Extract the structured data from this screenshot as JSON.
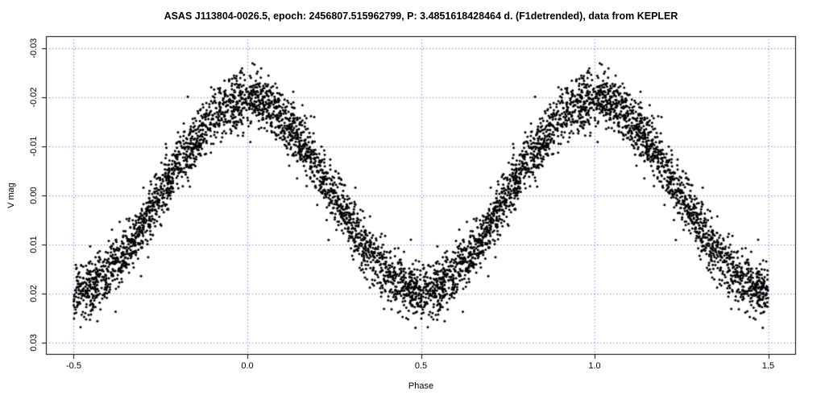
{
  "title": "ASAS J113804-0026.5, epoch: 2456807.515962799, P: 3.4851618428464 d. (F1detrended), data from KEPLER",
  "chart_data": {
    "type": "scatter",
    "title": "ASAS J113804-0026.5, epoch: 2456807.515962799, P: 3.4851618428464 d. (F1detrended), data from KEPLER",
    "xlabel": "Phase",
    "ylabel": "V mag",
    "xlim": [
      -0.5,
      1.5
    ],
    "ylim": [
      -0.03,
      0.03
    ],
    "y_axis_reversed": true,
    "axis_expansion": 0.04,
    "x_ticks": [
      -0.5,
      0.0,
      0.5,
      1.0,
      1.5
    ],
    "x_tick_labels": [
      "-0.5",
      "0.0",
      "0.5",
      "1.0",
      "1.5"
    ],
    "y_ticks": [
      -0.03,
      -0.02,
      -0.01,
      0.0,
      0.01,
      0.02,
      0.03
    ],
    "y_tick_labels": [
      "-0.03",
      "-0.02",
      "-0.01",
      "0.00",
      "0.01",
      "0.02",
      "0.03"
    ],
    "grid": true,
    "grid_color": "#5555ee",
    "grid_style": "dotted",
    "box_color": "#000000",
    "point_color": "#000000",
    "point_radius": 1.5,
    "legend": "none",
    "model": {
      "description": "Sinusoidal phased light curve; brightness maximum (most negative V mag) at phase 0.0 and 1.0, minimum at phase -0.5, 0.5, 1.5. Each observation is plotted twice (at phase and phase+1), phase folded over [-0.5, 0.5].",
      "mean_vmag": 0.0,
      "amplitude_mag": 0.0195,
      "phase_of_max_brightness": 0.0,
      "noise_sigma_mag": 0.0028,
      "n_base_points": 2600,
      "seed": 1138042656
    },
    "mean_curve": [
      {
        "phase": -0.5,
        "vmag": 0.0195
      },
      {
        "phase": -0.45,
        "vmag": 0.0185
      },
      {
        "phase": -0.4,
        "vmag": 0.0158
      },
      {
        "phase": -0.35,
        "vmag": 0.0115
      },
      {
        "phase": -0.3,
        "vmag": 0.006
      },
      {
        "phase": -0.25,
        "vmag": 0.0
      },
      {
        "phase": -0.2,
        "vmag": -0.006
      },
      {
        "phase": -0.15,
        "vmag": -0.0115
      },
      {
        "phase": -0.1,
        "vmag": -0.0158
      },
      {
        "phase": -0.05,
        "vmag": -0.0185
      },
      {
        "phase": 0.0,
        "vmag": -0.0195
      },
      {
        "phase": 0.05,
        "vmag": -0.0185
      },
      {
        "phase": 0.1,
        "vmag": -0.0158
      },
      {
        "phase": 0.15,
        "vmag": -0.0115
      },
      {
        "phase": 0.2,
        "vmag": -0.006
      },
      {
        "phase": 0.25,
        "vmag": 0.0
      },
      {
        "phase": 0.3,
        "vmag": 0.006
      },
      {
        "phase": 0.35,
        "vmag": 0.0115
      },
      {
        "phase": 0.4,
        "vmag": 0.0158
      },
      {
        "phase": 0.45,
        "vmag": 0.0185
      },
      {
        "phase": 0.5,
        "vmag": 0.0195
      }
    ]
  }
}
